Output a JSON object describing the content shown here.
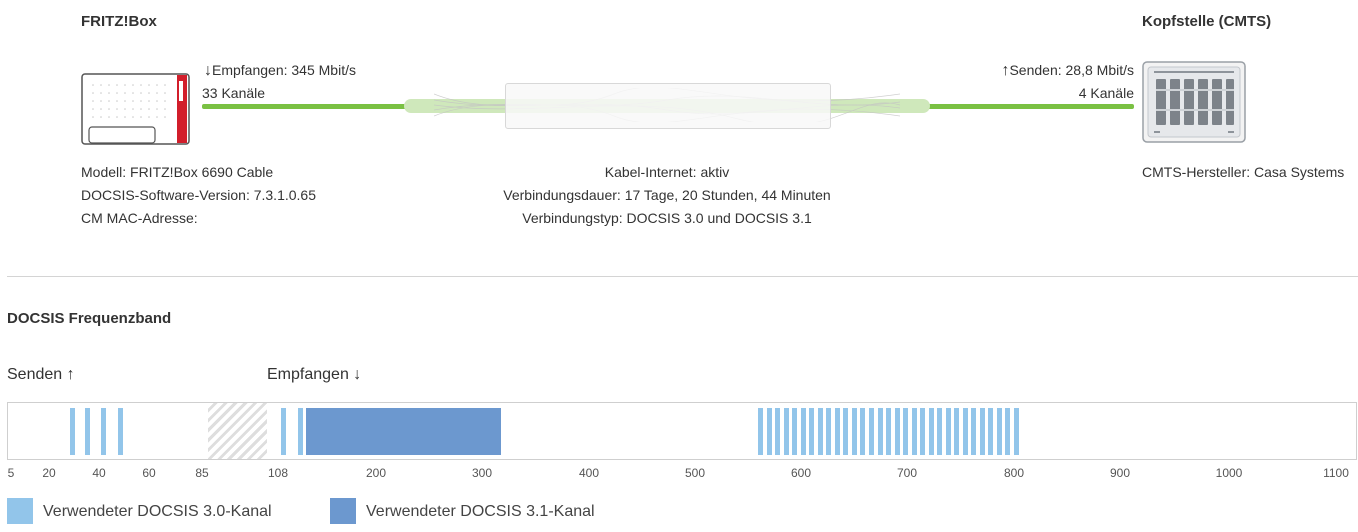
{
  "left_device": {
    "title": "FRITZ!Box",
    "model": "Modell: FRITZ!Box 6690 Cable",
    "software": "DOCSIS-Software-Version: 7.3.1.0.65",
    "mac_label": "CM MAC-Adresse:"
  },
  "right_device": {
    "title": "Kopfstelle (CMTS)",
    "vendor": "CMTS-Hersteller: Casa Systems"
  },
  "downstream": {
    "arrow": "↓",
    "speed": "Empfangen: 345 Mbit/s",
    "channels": "33 Kanäle"
  },
  "upstream": {
    "arrow": "↑",
    "speed": "Senden: 28,8 Mbit/s",
    "channels": "4 Kanäle"
  },
  "connection": {
    "status": "Kabel-Internet: aktiv",
    "duration": "Verbindungsdauer: 17 Tage, 20 Stunden, 44 Minuten",
    "type": "Verbindungstyp: DOCSIS 3.0 und DOCSIS 3.1"
  },
  "band": {
    "title": "DOCSIS Frequenzband",
    "send_label": "Senden",
    "send_arrow": "↑",
    "receive_label": "Empfangen",
    "receive_arrow": "↓",
    "ticks_left": [
      "5",
      "20",
      "40",
      "60",
      "85"
    ],
    "ticks_right": [
      "108",
      "200",
      "300",
      "400",
      "500",
      "600",
      "700",
      "800",
      "900",
      "1000",
      "1100"
    ],
    "colors": {
      "docsis30": "#92c5ea",
      "docsis31": "#6c98cf",
      "cable_green": "#7ac143"
    },
    "upstream_channels_mhz": [
      30.8,
      37.2,
      43.6,
      51.0
    ],
    "downstream_30_channels_mhz": [
      114,
      130,
      562,
      570,
      578,
      586,
      594,
      602,
      610,
      618,
      626,
      634,
      642,
      650,
      658,
      666,
      674,
      682,
      690,
      698,
      706,
      714,
      722,
      730,
      738,
      746,
      754,
      762,
      770,
      778,
      786,
      794,
      802
    ],
    "downstream_31_block_mhz": [
      135,
      318
    ]
  },
  "legend": {
    "docsis30": "Verwendeter DOCSIS 3.0-Kanal",
    "docsis31": "Verwendeter DOCSIS 3.1-Kanal"
  }
}
